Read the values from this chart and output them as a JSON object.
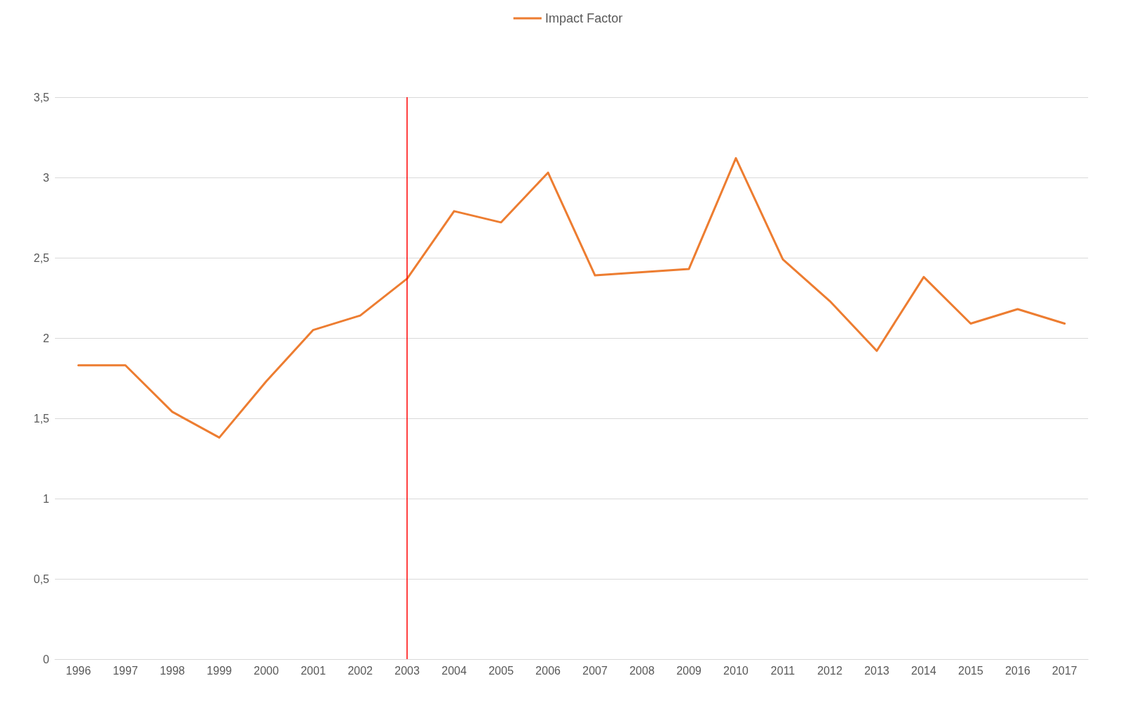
{
  "chart_data": {
    "type": "line",
    "categories": [
      "1996",
      "1997",
      "1998",
      "1999",
      "2000",
      "2001",
      "2002",
      "2003",
      "2004",
      "2005",
      "2006",
      "2007",
      "2008",
      "2009",
      "2010",
      "2011",
      "2012",
      "2013",
      "2014",
      "2015",
      "2016",
      "2017"
    ],
    "series": [
      {
        "name": "Impact Factor",
        "color": "#ed7d31",
        "values": [
          1.83,
          1.83,
          1.54,
          1.38,
          1.73,
          2.05,
          2.14,
          2.37,
          2.79,
          2.72,
          3.03,
          2.39,
          2.41,
          2.43,
          3.12,
          2.49,
          2.23,
          1.92,
          2.38,
          2.09,
          2.18,
          2.09
        ]
      }
    ],
    "ylim": [
      0,
      3.5
    ],
    "yticks": [
      0,
      {
        "value": 0.5,
        "label": "0,5"
      },
      1,
      {
        "value": 1.5,
        "label": "1,5"
      },
      2,
      {
        "value": 2.5,
        "label": "2,5"
      },
      3,
      {
        "value": 3.5,
        "label": "3,5"
      }
    ],
    "ref_lines": [
      {
        "axis": "x",
        "value": "2003",
        "color": "#ff0000",
        "line_style": "solid"
      }
    ],
    "grid": "y",
    "legend": "top",
    "marker": "none",
    "line_style": "solid"
  }
}
